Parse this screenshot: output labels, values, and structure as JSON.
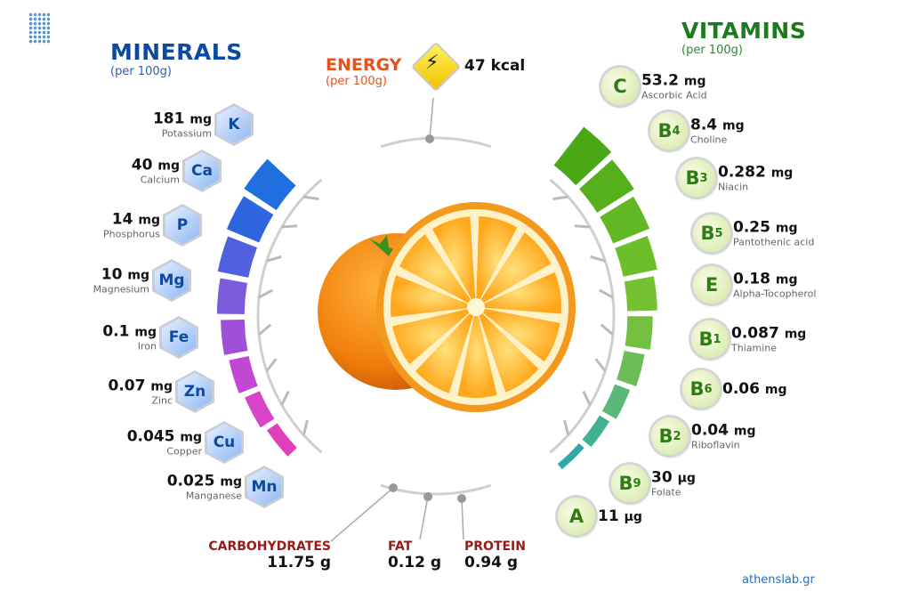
{
  "minerals": {
    "title": "MINERALS",
    "per": "(per 100g)",
    "items": [
      {
        "symbol": "K",
        "amount": "181",
        "unit": "mg",
        "name": "Potassium",
        "color": "#1f6fe0"
      },
      {
        "symbol": "Ca",
        "amount": "40",
        "unit": "mg",
        "name": "Calcium",
        "color": "#2f66e0"
      },
      {
        "symbol": "P",
        "amount": "14",
        "unit": "mg",
        "name": "Phosphorus",
        "color": "#5060de"
      },
      {
        "symbol": "Mg",
        "amount": "10",
        "unit": "mg",
        "name": "Magnesium",
        "color": "#7a5cdc"
      },
      {
        "symbol": "Fe",
        "amount": "0.1",
        "unit": "mg",
        "name": "Iron",
        "color": "#a04fd8"
      },
      {
        "symbol": "Zn",
        "amount": "0.07",
        "unit": "mg",
        "name": "Zinc",
        "color": "#c048d2"
      },
      {
        "symbol": "Cu",
        "amount": "0.045",
        "unit": "mg",
        "name": "Copper",
        "color": "#d844c8"
      },
      {
        "symbol": "Mn",
        "amount": "0.025",
        "unit": "mg",
        "name": "Manganese",
        "color": "#e040bc"
      }
    ]
  },
  "vitamins": {
    "title": "VITAMINS",
    "per": "(per 100g)",
    "items": [
      {
        "letter": "C",
        "sub": "",
        "amount": "53.2",
        "unit": "mg",
        "name": "Ascorbic Acid",
        "color": "#4aa816"
      },
      {
        "letter": "B",
        "sub": "4",
        "amount": "8.4",
        "unit": "mg",
        "name": "Choline",
        "color": "#56b01c"
      },
      {
        "letter": "B",
        "sub": "3",
        "amount": "0.282",
        "unit": "mg",
        "name": "Niacin",
        "color": "#62b824"
      },
      {
        "letter": "B",
        "sub": "5",
        "amount": "0.25",
        "unit": "mg",
        "name": "Pantothenic acid",
        "color": "#6cbf2a"
      },
      {
        "letter": "E",
        "sub": "",
        "amount": "0.18",
        "unit": "mg",
        "name": "Alpha-Tocopherol",
        "color": "#74c232"
      },
      {
        "letter": "B",
        "sub": "1",
        "amount": "0.087",
        "unit": "mg",
        "name": "Thiamine",
        "color": "#74c040"
      },
      {
        "letter": "B",
        "sub": "6",
        "amount": "0.06",
        "unit": "mg",
        "name": "",
        "color": "#6cbd58"
      },
      {
        "letter": "B",
        "sub": "2",
        "amount": "0.04",
        "unit": "mg",
        "name": "Riboflavin",
        "color": "#5cb878"
      },
      {
        "letter": "B",
        "sub": "9",
        "amount": "30",
        "unit": "µg",
        "name": "Folate",
        "color": "#42b092"
      },
      {
        "letter": "A",
        "sub": "",
        "amount": "11",
        "unit": "µg",
        "name": "",
        "color": "#2fa8a8"
      }
    ]
  },
  "energy": {
    "title": "ENERGY",
    "per": "(per 100g)",
    "value": "47 kcal",
    "icon": "lightning-icon",
    "color": "#e8501c"
  },
  "macros": [
    {
      "label": "CARBOHYDRATES",
      "value": "11.75 g"
    },
    {
      "label": "FAT",
      "value": "0.12 g"
    },
    {
      "label": "PROTEIN",
      "value": "0.94 g"
    }
  ],
  "footer": {
    "credit": "athenslab.gr"
  },
  "colors": {
    "minerals_title": "#0b4aa0",
    "vitamins_title": "#1e7a1e",
    "macro_label": "#9a1a1a",
    "credit": "#2a6fb8"
  }
}
